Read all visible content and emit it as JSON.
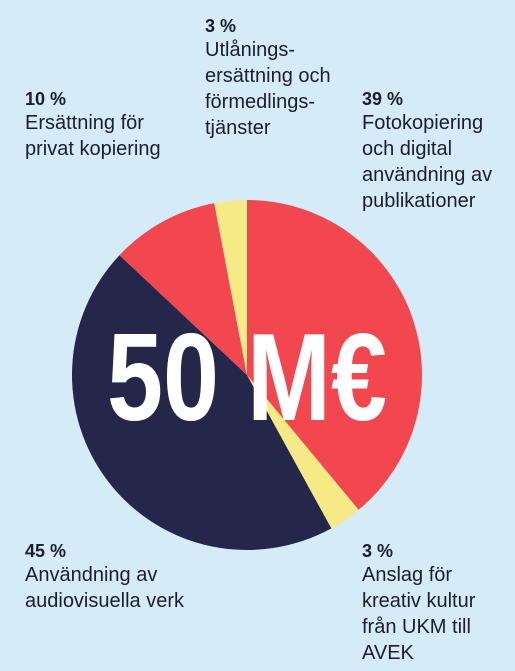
{
  "chart_data": {
    "type": "pie",
    "center_label": "50 M€",
    "categories": [
      "Fotokopiering\noch digital\nanvändning av\npublikationer",
      "Anslag för\nkreativ kultur\nfrån UKM till\nAVEK",
      "Användning av\naudiovisuella verk",
      "Ersättning för\nprivat kopiering",
      "Utlånings-\nersättning och\nförmedlings-\ntjänster"
    ],
    "values": [
      39,
      3,
      45,
      10,
      3
    ],
    "value_labels": [
      "39 %",
      "3 %",
      "45 %",
      "10 %",
      "3 %"
    ],
    "colors": [
      "#f2474f",
      "#f6ea86",
      "#24264a",
      "#f2474f",
      "#f6ea86"
    ]
  }
}
